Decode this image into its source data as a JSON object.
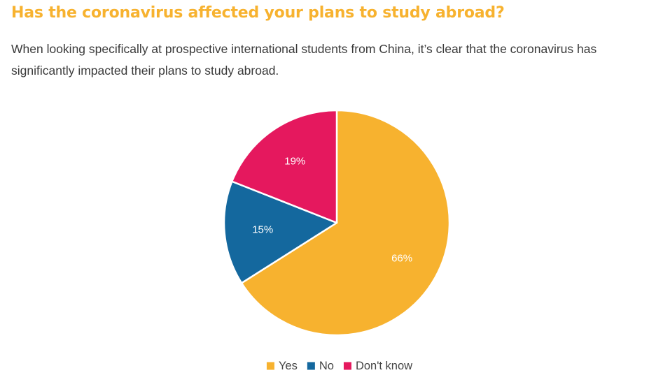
{
  "title": "Has the coronavirus affected your plans to study abroad?",
  "subtitle": "When looking specifically at prospective international students from China, it’s clear that the coronavirus has significantly impacted their plans to study abroad.",
  "chart_data": {
    "type": "pie",
    "title": "Has the coronavirus affected your plans to study abroad?",
    "start": "12 o'clock, clockwise",
    "legend_position": "bottom",
    "slices": [
      {
        "label": "Yes",
        "value": 66,
        "value_label": "66%",
        "color": "#F7B22F"
      },
      {
        "label": "No",
        "value": 15,
        "value_label": "15%",
        "color": "#14689E"
      },
      {
        "label": "Don't know",
        "value": 19,
        "value_label": "19%",
        "color": "#E5185E"
      }
    ]
  }
}
